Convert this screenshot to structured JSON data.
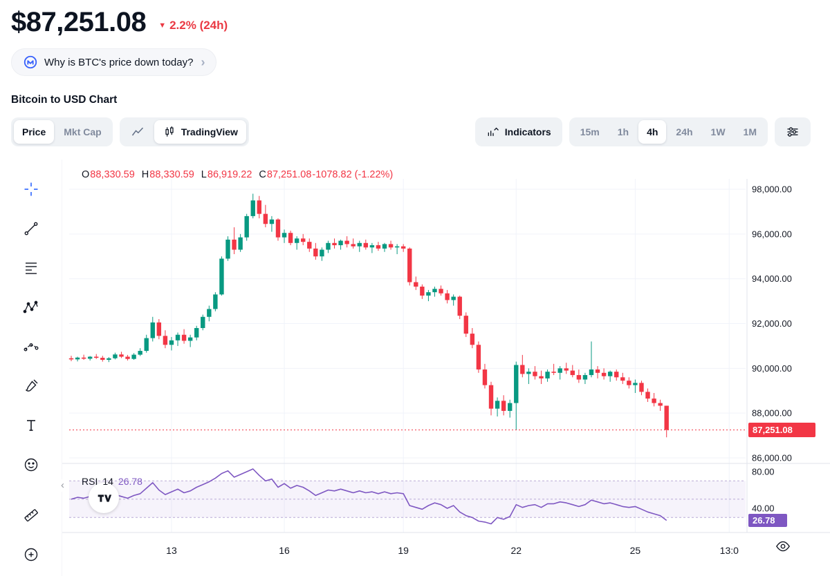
{
  "header": {
    "price": "$87,251.08",
    "change": "2.2% (24h)",
    "banner_text": "Why is BTC's price down today?",
    "section_title": "Bitcoin to USD Chart"
  },
  "icons": {
    "down_triangle": "▼",
    "chevron_right": "›",
    "collapse_left": "‹"
  },
  "toolbar": {
    "price_label": "Price",
    "mktcap_label": "Mkt Cap",
    "tradingview_label": "TradingView",
    "indicators_label": "Indicators",
    "timeframes": [
      "15m",
      "1h",
      "4h",
      "24h",
      "1W",
      "1M"
    ],
    "active_timeframe": "4h"
  },
  "chart": {
    "legend": {
      "o_label": "O",
      "o_val": "88,330.59",
      "h_label": "H",
      "h_val": "88,330.59",
      "l_label": "L",
      "l_val": "86,919.22",
      "c_label": "C",
      "c_val": "87,251.08",
      "change_val": "-1078.82 (-1.22%)"
    },
    "rsi_label": "RSI",
    "rsi_period": "14",
    "rsi_value": "26.78"
  },
  "chart_data": {
    "type": "candlestick",
    "title": "Bitcoin to USD Chart",
    "interval": "4h",
    "price_axis": {
      "min": 86000,
      "max": 98400,
      "ticks": [
        98000,
        96000,
        94000,
        92000,
        90000,
        88000,
        86000
      ],
      "labels": [
        "98,000.00",
        "96,000.00",
        "94,000.00",
        "92,000.00",
        "90,000.00",
        "88,000.00",
        "86,000.00"
      ]
    },
    "x_axis_labels": [
      {
        "label": "13",
        "index": 16
      },
      {
        "label": "16",
        "index": 34
      },
      {
        "label": "19",
        "index": 53
      },
      {
        "label": "22",
        "index": 71
      },
      {
        "label": "25",
        "index": 90
      },
      {
        "label": "13:0",
        "index": 105
      }
    ],
    "current_price": 87251.08,
    "current_price_label": "87,251.08",
    "ohlc": [
      [
        90450,
        90560,
        90320,
        90400
      ],
      [
        90400,
        90520,
        90310,
        90480
      ],
      [
        90480,
        90610,
        90380,
        90430
      ],
      [
        90430,
        90550,
        90350,
        90520
      ],
      [
        90520,
        90640,
        90420,
        90470
      ],
      [
        90470,
        90560,
        90300,
        90380
      ],
      [
        90380,
        90500,
        90280,
        90450
      ],
      [
        90450,
        90700,
        90400,
        90620
      ],
      [
        90620,
        90740,
        90460,
        90520
      ],
      [
        90520,
        90600,
        90350,
        90420
      ],
      [
        90420,
        90680,
        90380,
        90610
      ],
      [
        90610,
        90900,
        90550,
        90780
      ],
      [
        90780,
        91500,
        90700,
        91350
      ],
      [
        91350,
        92300,
        91200,
        92050
      ],
      [
        92050,
        92200,
        91300,
        91450
      ],
      [
        91450,
        91700,
        90900,
        91050
      ],
      [
        91050,
        91400,
        90800,
        91250
      ],
      [
        91250,
        91600,
        91000,
        91500
      ],
      [
        91500,
        91750,
        91100,
        91230
      ],
      [
        91230,
        91500,
        90950,
        91380
      ],
      [
        91380,
        91900,
        91250,
        91800
      ],
      [
        91800,
        92400,
        91700,
        92300
      ],
      [
        92300,
        92800,
        92100,
        92650
      ],
      [
        92650,
        93400,
        92550,
        93300
      ],
      [
        93300,
        95000,
        93250,
        94900
      ],
      [
        94900,
        95900,
        94800,
        95750
      ],
      [
        95750,
        96300,
        95100,
        95300
      ],
      [
        95300,
        96000,
        95200,
        95850
      ],
      [
        95850,
        96900,
        95700,
        96800
      ],
      [
        96800,
        97800,
        96700,
        97500
      ],
      [
        97500,
        97700,
        96700,
        96900
      ],
      [
        96900,
        97300,
        96300,
        96450
      ],
      [
        96450,
        96800,
        96100,
        96650
      ],
      [
        96650,
        96700,
        95700,
        95850
      ],
      [
        95850,
        96200,
        95600,
        96050
      ],
      [
        96050,
        96150,
        95500,
        95600
      ],
      [
        95600,
        95900,
        95300,
        95800
      ],
      [
        95800,
        96000,
        95500,
        95650
      ],
      [
        95650,
        95800,
        95200,
        95350
      ],
      [
        95350,
        95600,
        94850,
        95000
      ],
      [
        95000,
        95400,
        94800,
        95300
      ],
      [
        95300,
        95700,
        95150,
        95600
      ],
      [
        95600,
        95800,
        95350,
        95500
      ],
      [
        95500,
        95750,
        95300,
        95700
      ],
      [
        95700,
        95900,
        95400,
        95550
      ],
      [
        95550,
        95800,
        95350,
        95450
      ],
      [
        95450,
        95700,
        95200,
        95600
      ],
      [
        95600,
        95750,
        95300,
        95400
      ],
      [
        95400,
        95600,
        95150,
        95500
      ],
      [
        95500,
        95650,
        95250,
        95350
      ],
      [
        95350,
        95600,
        95200,
        95550
      ],
      [
        95550,
        95700,
        95300,
        95400
      ],
      [
        95400,
        95550,
        95100,
        95450
      ],
      [
        95450,
        95550,
        95200,
        95350
      ],
      [
        95350,
        95400,
        93700,
        93850
      ],
      [
        93850,
        94100,
        93500,
        93650
      ],
      [
        93650,
        93750,
        93100,
        93250
      ],
      [
        93250,
        93500,
        93000,
        93400
      ],
      [
        93400,
        93650,
        93200,
        93550
      ],
      [
        93550,
        93700,
        93250,
        93350
      ],
      [
        93350,
        93500,
        92900,
        93050
      ],
      [
        93050,
        93300,
        92800,
        93200
      ],
      [
        93200,
        93250,
        92200,
        92350
      ],
      [
        92350,
        92500,
        91400,
        91550
      ],
      [
        91550,
        91800,
        90900,
        91050
      ],
      [
        91050,
        91200,
        89800,
        89950
      ],
      [
        89950,
        90200,
        89100,
        89250
      ],
      [
        89250,
        89400,
        87900,
        88200
      ],
      [
        88200,
        88700,
        87850,
        88550
      ],
      [
        88550,
        88800,
        87900,
        88100
      ],
      [
        88100,
        88600,
        87800,
        88450
      ],
      [
        88450,
        90300,
        87250,
        90150
      ],
      [
        90150,
        90600,
        89600,
        89750
      ],
      [
        89750,
        90000,
        89300,
        89850
      ],
      [
        89850,
        90100,
        89500,
        89650
      ],
      [
        89650,
        89900,
        89300,
        89550
      ],
      [
        89550,
        89950,
        89400,
        89850
      ],
      [
        89850,
        90200,
        89700,
        89800
      ],
      [
        89800,
        90100,
        89500,
        90000
      ],
      [
        90000,
        90250,
        89750,
        89900
      ],
      [
        89900,
        90150,
        89600,
        89700
      ],
      [
        89700,
        89950,
        89350,
        89500
      ],
      [
        89500,
        89800,
        89300,
        89700
      ],
      [
        89700,
        91200,
        89600,
        89950
      ],
      [
        89950,
        90100,
        89550,
        89800
      ],
      [
        89800,
        90000,
        89500,
        89650
      ],
      [
        89650,
        89900,
        89400,
        89850
      ],
      [
        89850,
        89950,
        89450,
        89600
      ],
      [
        89600,
        89800,
        89300,
        89450
      ],
      [
        89450,
        89600,
        89100,
        89250
      ],
      [
        89250,
        89500,
        88900,
        89350
      ],
      [
        89350,
        89450,
        88800,
        88950
      ],
      [
        88950,
        89100,
        88500,
        88650
      ],
      [
        88650,
        88900,
        88300,
        88450
      ],
      [
        88450,
        88600,
        88100,
        88330
      ],
      [
        88330.59,
        88330.59,
        86919.22,
        87251.08
      ]
    ],
    "indicator": {
      "name": "RSI",
      "period": 14,
      "current": 26.78,
      "current_label": "26.78",
      "bands": [
        70,
        50,
        30
      ],
      "axis_ticks": [
        80,
        40
      ],
      "axis_labels": [
        "80.00",
        "40.00"
      ],
      "values": [
        50,
        52,
        51,
        53,
        52,
        50,
        51,
        55,
        53,
        51,
        54,
        56,
        62,
        68,
        60,
        55,
        58,
        61,
        57,
        59,
        63,
        66,
        69,
        73,
        78,
        81,
        74,
        77,
        80,
        83,
        76,
        70,
        72,
        63,
        67,
        62,
        65,
        63,
        59,
        54,
        57,
        60,
        59,
        61,
        59,
        57,
        59,
        57,
        58,
        56,
        58,
        56,
        57,
        56,
        43,
        41,
        39,
        43,
        46,
        44,
        40,
        43,
        36,
        32,
        30,
        26,
        25,
        23,
        30,
        28,
        31,
        44,
        41,
        43,
        44,
        41,
        45,
        45,
        47,
        46,
        44,
        42,
        44,
        49,
        47,
        45,
        46,
        44,
        42,
        41,
        42,
        39,
        36,
        34,
        32,
        26.78
      ]
    },
    "colors": {
      "up": "#089981",
      "down": "#f23645",
      "rsi": "#7e57c2",
      "grid": "#f0f3fa"
    }
  }
}
